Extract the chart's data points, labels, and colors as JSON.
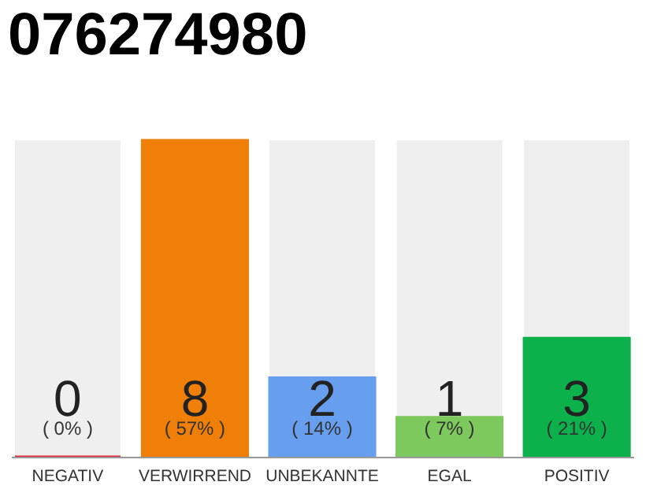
{
  "chart_data": {
    "type": "bar",
    "title": "076274980",
    "categories": [
      "NEGATIV",
      "VERWIRREND",
      "UNBEKANNTE",
      "EGAL",
      "POSITIV"
    ],
    "values": [
      0,
      8,
      2,
      1,
      3
    ],
    "colors": [
      "#e8213c",
      "#f07f0a",
      "#679eee",
      "#7dc95e",
      "#0db14b"
    ],
    "ylim": [
      0,
      8
    ],
    "data_labels": true,
    "annotations": [
      "( 0% )",
      "( 57% )",
      "( 14% )",
      "( 7% )",
      "( 21% )"
    ]
  }
}
